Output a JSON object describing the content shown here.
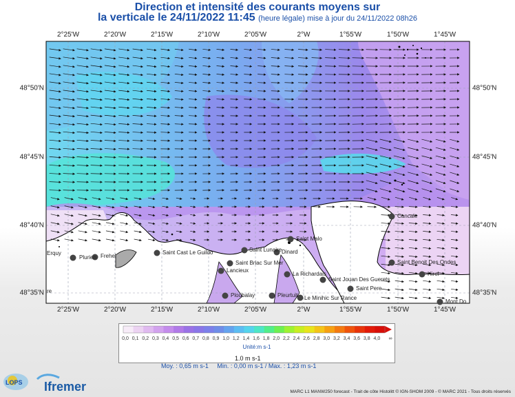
{
  "title": {
    "line1": "Direction et intensité des courants moyens sur",
    "line2": "la verticale le 24/11/2022 11:45",
    "line2_small": "(heure légale) mise à jour du 24/11/2022 08h26"
  },
  "map": {
    "lon_ticks": [
      "2°25'W",
      "2°20'W",
      "2°15'W",
      "2°10'W",
      "2°05'W",
      "2°W",
      "1°55'W",
      "1°50'W",
      "1°45'W"
    ],
    "lat_ticks": [
      "48°50'N",
      "48°45'N",
      "48°40'N",
      "48°35'N"
    ],
    "places": [
      "Erquy",
      "Plurien",
      "Frehel",
      "Saint Cast Le Guildo",
      "Saint Lunaire",
      "Dinard",
      "Saint Malo",
      "Saint Briac Sur Mer",
      "Lancieux",
      "Pleurtuit",
      "La Richardais",
      "Saint Jouan Des Guerets",
      "Saint Pere",
      "Ploubalay",
      "Le Minihic Sur Rance",
      "Cancale",
      "Saint Benoit Des Ondes",
      "Hirel",
      "Mont Do"
    ],
    "cut_labels": [
      "Erquy",
      "re"
    ]
  },
  "legend": {
    "labels": [
      "0,0",
      "0,1",
      "0,2",
      "0,3",
      "0,4",
      "0,5",
      "0,6",
      "0,7",
      "0,8",
      "0,9",
      "1,0",
      "1,2",
      "1,4",
      "1,6",
      "1,8",
      "2,0",
      "2,2",
      "2,4",
      "2,6",
      "2,8",
      "3,0",
      "3,2",
      "3,4",
      "3,6",
      "3,8",
      "4,0",
      "∞"
    ],
    "colors": [
      "#f7ecf8",
      "#ecd3f2",
      "#e0baf0",
      "#d2a2ee",
      "#c48cec",
      "#b17ae8",
      "#9a72e6",
      "#8a76e8",
      "#7c80ea",
      "#6f8de8",
      "#64a3ee",
      "#5cbdf2",
      "#55d4ec",
      "#4ee6c6",
      "#52ee8a",
      "#6ef052",
      "#9ef232",
      "#c8ee22",
      "#e8e41c",
      "#f4c418",
      "#f6a012",
      "#f47a10",
      "#ef540c",
      "#e8340a",
      "#e21a08",
      "#d80e08"
    ],
    "unit": "Unité:m s-1",
    "reference_arrow_label": "1.0 m s-1"
  },
  "stats": {
    "moy": "Moy. : 0,65 m s-1",
    "minmax": "Min. : 0,00 m s-1 / Max. : 1,23 m s-1"
  },
  "credit": "MARC L1 MANW250 forecast - Trait de côte Histolitt © IGN-SHOM 2009 - © MARC 2021 - Tous droits réservés",
  "logos": {
    "lops": "LOPS",
    "ifremer": "Ifremer"
  }
}
